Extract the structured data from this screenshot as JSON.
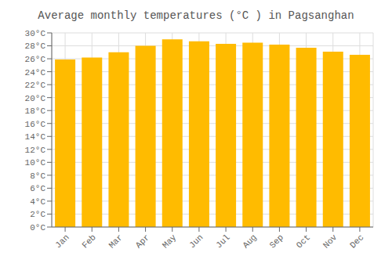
{
  "chart_data": {
    "type": "bar",
    "title": "Average monthly temperatures (°C ) in Pagsanghan",
    "categories": [
      "Jan",
      "Feb",
      "Mar",
      "Apr",
      "May",
      "Jun",
      "Jul",
      "Aug",
      "Sep",
      "Oct",
      "Nov",
      "Dec"
    ],
    "values": [
      25.9,
      26.2,
      27.0,
      28.0,
      29.0,
      28.7,
      28.3,
      28.5,
      28.2,
      27.7,
      27.1,
      26.6
    ],
    "color": "#FFBB00",
    "ylim": [
      0,
      30
    ],
    "yticks": [
      {
        "value": 0,
        "label": "0°C"
      },
      {
        "value": 2,
        "label": "2°C"
      },
      {
        "value": 4,
        "label": "4°C"
      },
      {
        "value": 6,
        "label": "6°C"
      },
      {
        "value": 8,
        "label": "8°C"
      },
      {
        "value": 10,
        "label": "10°C"
      },
      {
        "value": 12,
        "label": "12°C"
      },
      {
        "value": 14,
        "label": "14°C"
      },
      {
        "value": 16,
        "label": "16°C"
      },
      {
        "value": 18,
        "label": "18°C"
      },
      {
        "value": 20,
        "label": "20°C"
      },
      {
        "value": 22,
        "label": "22°C"
      },
      {
        "value": 24,
        "label": "24°C"
      },
      {
        "value": 26,
        "label": "26°C"
      },
      {
        "value": 28,
        "label": "28°C"
      },
      {
        "value": 30,
        "label": "30°C"
      }
    ],
    "grid": true
  }
}
